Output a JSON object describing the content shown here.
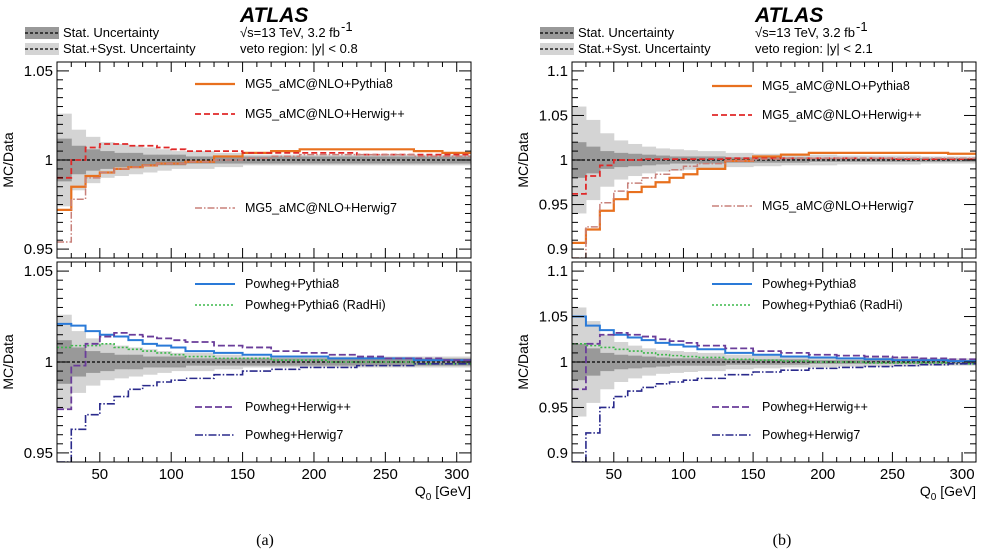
{
  "chart_data": [
    {
      "id": "a",
      "type": "line",
      "caption": "(a)",
      "experiment": "ATLAS",
      "energy_label": "√s=13 TeV, 3.2 fb",
      "energy_sup": "-1",
      "region_label": "veto region: |y| < 0.8",
      "band_legend": [
        "Stat. Uncertainty",
        "Stat.+Syst. Uncertainty"
      ],
      "xlabel": "Q",
      "xlabel_sub": "0",
      "xlabel_unit": " [GeV]",
      "xlim": [
        20,
        310
      ],
      "xticks": [
        50,
        100,
        150,
        200,
        250,
        300
      ],
      "x_edges": [
        20,
        30,
        40,
        50,
        60,
        70,
        80,
        90,
        100,
        110,
        130,
        150,
        170,
        190,
        210,
        230,
        250,
        270,
        290,
        310
      ],
      "stat_band": [
        0.012,
        0.008,
        0.006,
        0.005,
        0.004,
        0.004,
        0.003,
        0.003,
        0.003,
        0.002,
        0.002,
        0.002,
        0.002,
        0.002,
        0.002,
        0.002,
        0.002,
        0.002,
        0.002
      ],
      "syst_band": [
        0.026,
        0.017,
        0.013,
        0.01,
        0.009,
        0.008,
        0.007,
        0.006,
        0.005,
        0.005,
        0.004,
        0.003,
        0.003,
        0.003,
        0.003,
        0.003,
        0.003,
        0.003,
        0.003
      ],
      "panels": [
        {
          "ylabel": "MC/Data",
          "ylim": [
            0.945,
            1.055
          ],
          "yticks": [
            0.95,
            1,
            1.05
          ],
          "ytick_labels": [
            "0.95",
            "1",
            "1.05"
          ],
          "series": [
            {
              "name": "MG5_aMC@NLO+Pythia8",
              "color": "#e8701e",
              "dash": "",
              "width": 2.2,
              "values": [
                0.972,
                0.985,
                0.991,
                0.993,
                0.995,
                0.996,
                0.997,
                0.998,
                0.998,
                0.999,
                1.002,
                1.004,
                1.005,
                1.006,
                1.006,
                1.006,
                1.006,
                1.005,
                1.004
              ]
            },
            {
              "name": "MG5_aMC@NLO+Herwig++",
              "color": "#e02828",
              "dash": "6,3",
              "width": 1.8,
              "values": [
                0.99,
                1.0,
                1.007,
                1.009,
                1.009,
                1.008,
                1.008,
                1.007,
                1.006,
                1.005,
                1.005,
                1.004,
                1.004,
                1.004,
                1.004,
                1.003,
                1.003,
                1.003,
                1.003
              ]
            },
            {
              "name": "MG5_aMC@NLO+Herwig7",
              "color": "#c8807a",
              "dash": "7,2,1.5,2",
              "width": 1.5,
              "values": [
                0.954,
                0.978,
                0.99,
                0.993,
                0.995,
                0.996,
                0.997,
                0.998,
                0.998,
                0.999,
                1.0,
                1.001,
                1.002,
                1.003,
                1.003,
                1.003,
                1.003,
                1.002,
                1.002
              ]
            }
          ]
        },
        {
          "ylabel": "MC/Data",
          "ylim": [
            0.945,
            1.055
          ],
          "yticks": [
            0.95,
            1,
            1.05
          ],
          "ytick_labels": [
            "0.95",
            "1",
            "1.05"
          ],
          "series": [
            {
              "name": "Powheg+Pythia8",
              "color": "#2a7ad8",
              "dash": "",
              "width": 2.0,
              "values": [
                1.021,
                1.02,
                1.017,
                1.015,
                1.014,
                1.012,
                1.01,
                1.009,
                1.008,
                1.006,
                1.005,
                1.004,
                1.003,
                1.003,
                1.002,
                1.002,
                1.002,
                1.001,
                1.001
              ]
            },
            {
              "name": "Powheg+Pythia6 (RadHi)",
              "color": "#3cb84a",
              "dash": "2,2",
              "width": 1.6,
              "values": [
                1.008,
                1.009,
                1.009,
                1.01,
                1.008,
                1.007,
                1.006,
                1.005,
                1.004,
                1.003,
                1.002,
                1.002,
                1.001,
                1.001,
                1.0,
                1.0,
                1.0,
                0.999,
                0.999
              ]
            },
            {
              "name": "Powheg+Herwig++",
              "color": "#6a3d9a",
              "dash": "7,3",
              "width": 1.8,
              "values": [
                0.974,
                0.998,
                1.01,
                1.014,
                1.016,
                1.015,
                1.014,
                1.013,
                1.012,
                1.011,
                1.009,
                1.008,
                1.006,
                1.005,
                1.004,
                1.003,
                1.002,
                1.002,
                1.001
              ]
            },
            {
              "name": "Powheg+Herwig7",
              "color": "#2a2a8c",
              "dash": "8,2,1.5,2",
              "width": 1.6,
              "values": [
                0.945,
                0.963,
                0.971,
                0.977,
                0.981,
                0.985,
                0.987,
                0.989,
                0.99,
                0.991,
                0.993,
                0.995,
                0.996,
                0.997,
                0.997,
                0.998,
                0.998,
                0.999,
                0.999
              ]
            }
          ]
        }
      ]
    },
    {
      "id": "b",
      "type": "line",
      "caption": "(b)",
      "experiment": "ATLAS",
      "energy_label": "√s=13 TeV, 3.2 fb",
      "energy_sup": "-1",
      "region_label": "veto region: |y| < 2.1",
      "band_legend": [
        "Stat. Uncertainty",
        "Stat.+Syst. Uncertainty"
      ],
      "xlabel": "Q",
      "xlabel_sub": "0",
      "xlabel_unit": " [GeV]",
      "xlim": [
        20,
        310
      ],
      "xticks": [
        50,
        100,
        150,
        200,
        250,
        300
      ],
      "x_edges": [
        20,
        30,
        40,
        50,
        60,
        70,
        80,
        90,
        100,
        110,
        130,
        150,
        170,
        190,
        210,
        230,
        250,
        270,
        290,
        310
      ],
      "stat_band": [
        0.02,
        0.015,
        0.01,
        0.008,
        0.007,
        0.006,
        0.005,
        0.004,
        0.004,
        0.004,
        0.003,
        0.003,
        0.003,
        0.002,
        0.002,
        0.002,
        0.002,
        0.002,
        0.002
      ],
      "syst_band": [
        0.06,
        0.045,
        0.03,
        0.022,
        0.018,
        0.015,
        0.013,
        0.012,
        0.011,
        0.01,
        0.008,
        0.007,
        0.006,
        0.006,
        0.005,
        0.005,
        0.005,
        0.004,
        0.004
      ],
      "panels": [
        {
          "ylabel": "MC/Data",
          "ylim": [
            0.89,
            1.11
          ],
          "yticks": [
            0.9,
            0.95,
            1,
            1.05,
            1.1
          ],
          "ytick_labels": [
            "0.9",
            "0.95",
            "1",
            "1.05",
            "1.1"
          ],
          "series": [
            {
              "name": "MG5_aMC@NLO+Pythia8",
              "color": "#e8701e",
              "dash": "",
              "width": 2.2,
              "values": [
                0.907,
                0.922,
                0.943,
                0.956,
                0.964,
                0.97,
                0.975,
                0.98,
                0.984,
                0.99,
                0.999,
                1.004,
                1.006,
                1.008,
                1.008,
                1.008,
                1.008,
                1.008,
                1.007
              ]
            },
            {
              "name": "MG5_aMC@NLO+Herwig++",
              "color": "#e02828",
              "dash": "6,3",
              "width": 1.8,
              "values": [
                0.962,
                0.982,
                0.994,
                1.0,
                1.0,
                1.001,
                1.001,
                1.001,
                1.001,
                1.001,
                1.002,
                1.002,
                1.002,
                1.002,
                1.002,
                1.002,
                1.001,
                1.001,
                1.001
              ]
            },
            {
              "name": "MG5_aMC@NLO+Herwig7",
              "color": "#c8807a",
              "dash": "7,2,1.5,2",
              "width": 1.5,
              "values": [
                0.89,
                0.925,
                0.952,
                0.965,
                0.974,
                0.98,
                0.984,
                0.989,
                0.993,
                0.996,
                0.999,
                1.001,
                1.002,
                1.002,
                1.002,
                1.002,
                1.002,
                1.002,
                1.002
              ]
            }
          ]
        },
        {
          "ylabel": "MC/Data",
          "ylim": [
            0.89,
            1.11
          ],
          "yticks": [
            0.9,
            0.95,
            1,
            1.05,
            1.1
          ],
          "ytick_labels": [
            "0.9",
            "0.95",
            "1",
            "1.05",
            "1.1"
          ],
          "series": [
            {
              "name": "Powheg+Pythia8",
              "color": "#2a7ad8",
              "dash": "",
              "width": 2.0,
              "values": [
                1.05,
                1.04,
                1.035,
                1.03,
                1.027,
                1.024,
                1.021,
                1.019,
                1.017,
                1.014,
                1.01,
                1.008,
                1.006,
                1.005,
                1.004,
                1.003,
                1.002,
                1.002,
                1.001
              ]
            },
            {
              "name": "Powheg+Pythia6 (RadHi)",
              "color": "#3cb84a",
              "dash": "2,2",
              "width": 1.6,
              "values": [
                1.02,
                1.018,
                1.016,
                1.014,
                1.012,
                1.01,
                1.008,
                1.007,
                1.006,
                1.005,
                1.003,
                1.002,
                1.001,
                1.0,
                1.0,
                0.999,
                0.999,
                0.999,
                0.998
              ]
            },
            {
              "name": "Powheg+Herwig++",
              "color": "#6a3d9a",
              "dash": "7,3",
              "width": 1.8,
              "values": [
                0.97,
                1.02,
                1.03,
                1.032,
                1.03,
                1.028,
                1.025,
                1.023,
                1.021,
                1.018,
                1.015,
                1.012,
                1.01,
                1.008,
                1.007,
                1.006,
                1.005,
                1.004,
                1.003
              ]
            },
            {
              "name": "Powheg+Herwig7",
              "color": "#2a2a8c",
              "dash": "8,2,1.5,2",
              "width": 1.6,
              "values": [
                0.89,
                0.922,
                0.95,
                0.962,
                0.968,
                0.972,
                0.976,
                0.978,
                0.98,
                0.982,
                0.986,
                0.989,
                0.991,
                0.993,
                0.994,
                0.995,
                0.996,
                0.997,
                0.998
              ]
            }
          ]
        }
      ]
    }
  ]
}
